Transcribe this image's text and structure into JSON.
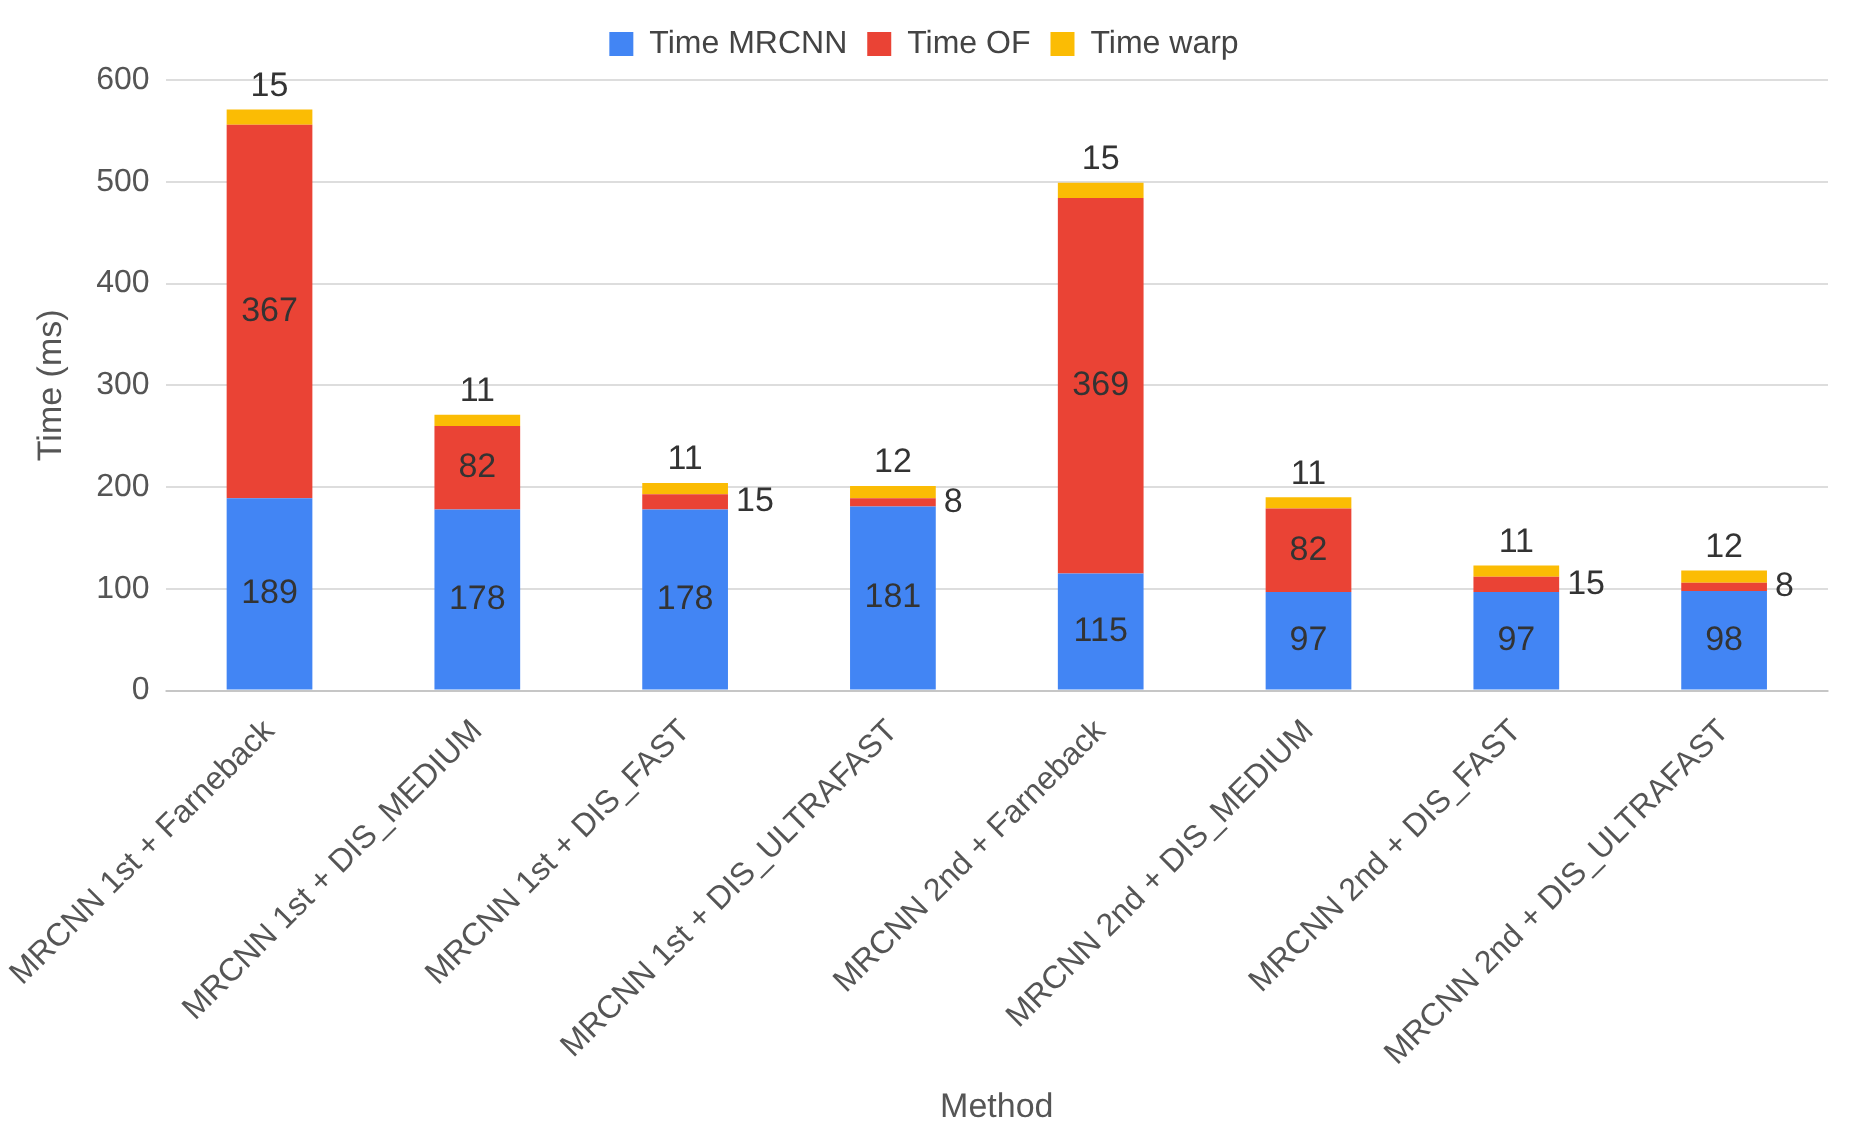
{
  "chart_data": {
    "type": "bar",
    "stacked": true,
    "xlabel": "Method",
    "ylabel": "Time (ms)",
    "categories": [
      "MRCNN 1st + Farneback",
      "MRCNN 1st + DIS_MEDIUM",
      "MRCNN 1st + DIS_FAST",
      "MRCNN 1st + DIS_ULTRAFAST",
      "MRCNN 2nd + Farneback",
      "MRCNN 2nd + DIS_MEDIUM",
      "MRCNN 2nd + DIS_FAST",
      "MRCNN 2nd + DIS_ULTRAFAST"
    ],
    "series": [
      {
        "name": "Time MRCNN",
        "color": "#4285f4",
        "values": [
          189,
          178,
          178,
          181,
          115,
          97,
          97,
          98
        ]
      },
      {
        "name": "Time OF",
        "color": "#ea4335",
        "values": [
          367,
          82,
          15,
          8,
          369,
          82,
          15,
          8
        ]
      },
      {
        "name": "Time warp",
        "color": "#fbbc04",
        "values": [
          15,
          11,
          11,
          12,
          15,
          11,
          11,
          12
        ]
      }
    ],
    "ylim": [
      0,
      600
    ],
    "yticks": [
      0,
      100,
      200,
      300,
      400,
      500,
      600
    ],
    "grid": "y",
    "legend": "top",
    "data_labels": true
  }
}
